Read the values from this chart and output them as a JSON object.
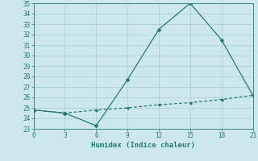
{
  "line1_x": [
    0,
    3,
    6,
    9,
    12,
    15,
    18,
    21
  ],
  "line1_y": [
    24.8,
    24.5,
    23.3,
    27.7,
    32.5,
    35.0,
    31.5,
    26.2
  ],
  "line2_x": [
    0,
    3,
    6,
    9,
    12,
    15,
    18,
    21
  ],
  "line2_y": [
    24.8,
    24.5,
    24.8,
    25.0,
    25.3,
    25.5,
    25.8,
    26.2
  ],
  "line_color": "#2a7a6e",
  "bg_color": "#cce8ec",
  "grid_color": "#aacdd4",
  "xlabel": "Humidex (Indice chaleur)",
  "xlim": [
    0,
    21
  ],
  "ylim": [
    23,
    35
  ],
  "xticks": [
    0,
    3,
    6,
    9,
    12,
    15,
    18,
    21
  ],
  "yticks": [
    23,
    24,
    25,
    26,
    27,
    28,
    29,
    30,
    31,
    32,
    33,
    34,
    35
  ],
  "tick_fontsize": 5.5,
  "xlabel_fontsize": 6.5
}
